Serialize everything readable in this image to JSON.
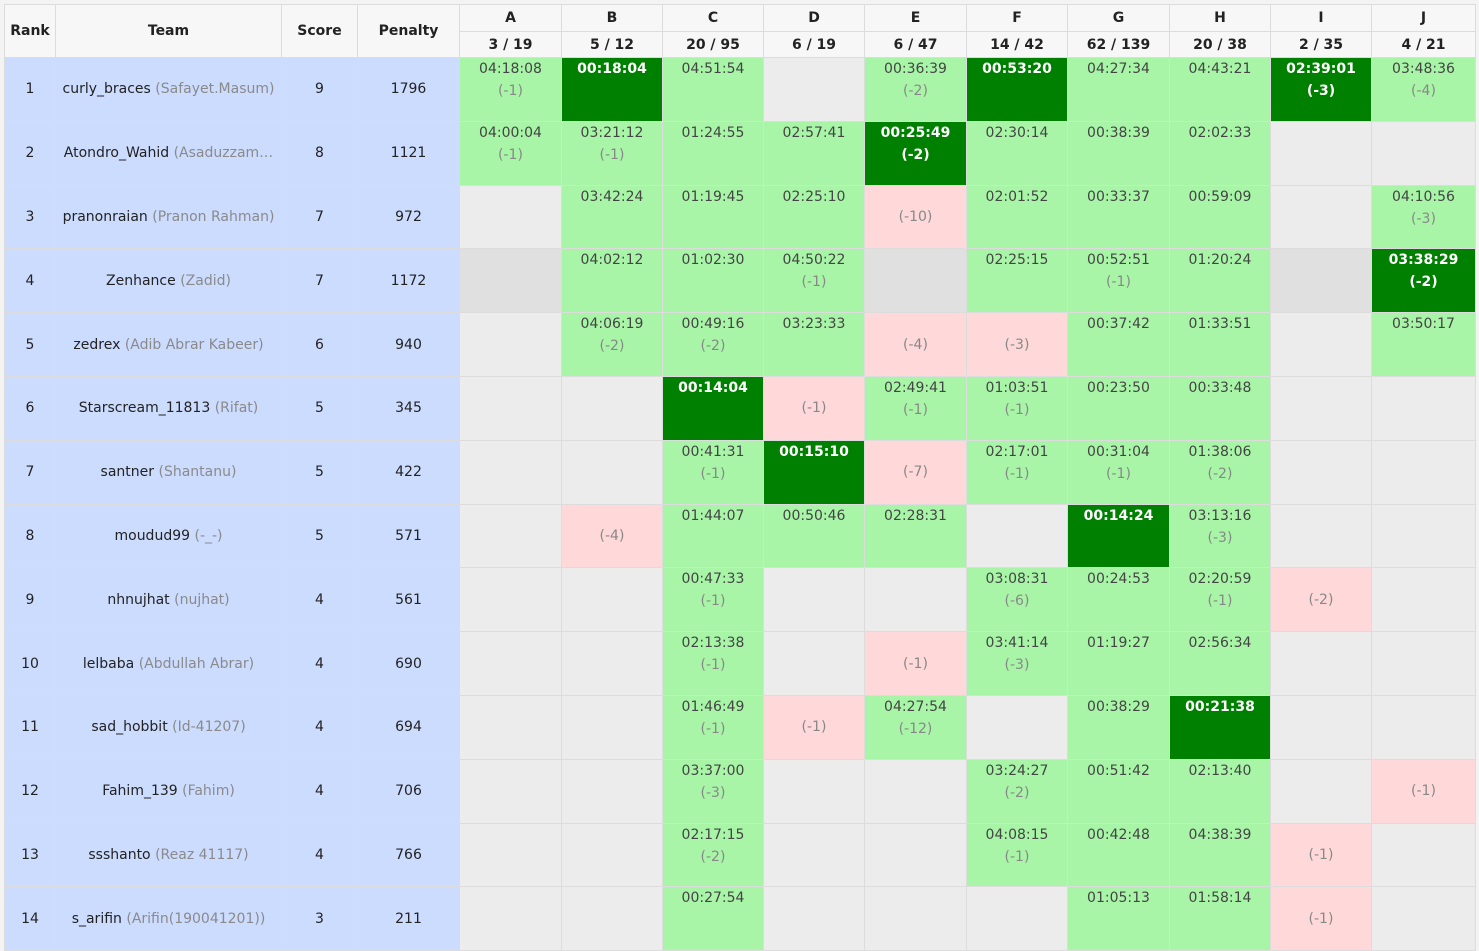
{
  "headers": {
    "rank": "Rank",
    "team": "Team",
    "score": "Score",
    "penalty": "Penalty"
  },
  "problems": [
    {
      "letter": "A",
      "stats": "3 / 19"
    },
    {
      "letter": "B",
      "stats": "5 / 12"
    },
    {
      "letter": "C",
      "stats": "20 / 95"
    },
    {
      "letter": "D",
      "stats": "6 / 19"
    },
    {
      "letter": "E",
      "stats": "6 / 47"
    },
    {
      "letter": "F",
      "stats": "14 / 42"
    },
    {
      "letter": "G",
      "stats": "62 / 139"
    },
    {
      "letter": "H",
      "stats": "20 / 38"
    },
    {
      "letter": "I",
      "stats": "2 / 35"
    },
    {
      "letter": "J",
      "stats": "4 / 21"
    }
  ],
  "colors": {
    "solved": "#a8f5a8",
    "first_solve": "#008000",
    "failed": "#ffd9d9",
    "empty": "#ececec",
    "team_bg": "#ccdcff"
  },
  "rows": [
    {
      "rank": "1",
      "handle": "curly_braces",
      "name": "(Safayet.Masum)",
      "score": "9",
      "penalty": "1796",
      "cells": [
        {
          "s": "ok",
          "t": "04:18:08",
          "p": "(-1)"
        },
        {
          "s": "first",
          "t": "00:18:04",
          "p": ""
        },
        {
          "s": "ok",
          "t": "04:51:54",
          "p": ""
        },
        {
          "s": "none"
        },
        {
          "s": "ok",
          "t": "00:36:39",
          "p": "(-2)"
        },
        {
          "s": "first",
          "t": "00:53:20",
          "p": ""
        },
        {
          "s": "ok",
          "t": "04:27:34",
          "p": ""
        },
        {
          "s": "ok",
          "t": "04:43:21",
          "p": ""
        },
        {
          "s": "first",
          "t": "02:39:01",
          "p": "(-3)"
        },
        {
          "s": "ok",
          "t": "03:48:36",
          "p": "(-4)"
        }
      ]
    },
    {
      "rank": "2",
      "handle": "Atondro_Wahid",
      "name": "(Asaduzzam…",
      "score": "8",
      "penalty": "1121",
      "cells": [
        {
          "s": "ok",
          "t": "04:00:04",
          "p": "(-1)"
        },
        {
          "s": "ok",
          "t": "03:21:12",
          "p": "(-1)"
        },
        {
          "s": "ok",
          "t": "01:24:55",
          "p": ""
        },
        {
          "s": "ok",
          "t": "02:57:41",
          "p": ""
        },
        {
          "s": "first",
          "t": "00:25:49",
          "p": "(-2)"
        },
        {
          "s": "ok",
          "t": "02:30:14",
          "p": ""
        },
        {
          "s": "ok",
          "t": "00:38:39",
          "p": ""
        },
        {
          "s": "ok",
          "t": "02:02:33",
          "p": ""
        },
        {
          "s": "none"
        },
        {
          "s": "none"
        }
      ]
    },
    {
      "rank": "3",
      "handle": "pranonraian",
      "name": "(Pranon Rahman)",
      "score": "7",
      "penalty": "972",
      "cells": [
        {
          "s": "none"
        },
        {
          "s": "ok",
          "t": "03:42:24",
          "p": ""
        },
        {
          "s": "ok",
          "t": "01:19:45",
          "p": ""
        },
        {
          "s": "ok",
          "t": "02:25:10",
          "p": ""
        },
        {
          "s": "fail",
          "p": "(-10)"
        },
        {
          "s": "ok",
          "t": "02:01:52",
          "p": ""
        },
        {
          "s": "ok",
          "t": "00:33:37",
          "p": ""
        },
        {
          "s": "ok",
          "t": "00:59:09",
          "p": ""
        },
        {
          "s": "none"
        },
        {
          "s": "ok",
          "t": "04:10:56",
          "p": "(-3)"
        }
      ]
    },
    {
      "rank": "4",
      "handle": "Zenhance",
      "name": "(Zadid)",
      "score": "7",
      "penalty": "1172",
      "cells": [
        {
          "s": "grey"
        },
        {
          "s": "ok",
          "t": "04:02:12",
          "p": ""
        },
        {
          "s": "ok",
          "t": "01:02:30",
          "p": ""
        },
        {
          "s": "ok",
          "t": "04:50:22",
          "p": "(-1)"
        },
        {
          "s": "grey"
        },
        {
          "s": "ok",
          "t": "02:25:15",
          "p": ""
        },
        {
          "s": "ok",
          "t": "00:52:51",
          "p": "(-1)"
        },
        {
          "s": "ok",
          "t": "01:20:24",
          "p": ""
        },
        {
          "s": "grey"
        },
        {
          "s": "first",
          "t": "03:38:29",
          "p": "(-2)"
        }
      ]
    },
    {
      "rank": "5",
      "handle": "zedrex",
      "name": "(Adib Abrar Kabeer)",
      "score": "6",
      "penalty": "940",
      "cells": [
        {
          "s": "none"
        },
        {
          "s": "ok",
          "t": "04:06:19",
          "p": "(-2)"
        },
        {
          "s": "ok",
          "t": "00:49:16",
          "p": "(-2)"
        },
        {
          "s": "ok",
          "t": "03:23:33",
          "p": ""
        },
        {
          "s": "fail",
          "p": "(-4)"
        },
        {
          "s": "fail",
          "p": "(-3)"
        },
        {
          "s": "ok",
          "t": "00:37:42",
          "p": ""
        },
        {
          "s": "ok",
          "t": "01:33:51",
          "p": ""
        },
        {
          "s": "none"
        },
        {
          "s": "ok",
          "t": "03:50:17",
          "p": ""
        }
      ]
    },
    {
      "rank": "6",
      "handle": "Starscream_11813",
      "name": "(Rifat)",
      "score": "5",
      "penalty": "345",
      "cells": [
        {
          "s": "none"
        },
        {
          "s": "none"
        },
        {
          "s": "first",
          "t": "00:14:04",
          "p": ""
        },
        {
          "s": "fail",
          "p": "(-1)"
        },
        {
          "s": "ok",
          "t": "02:49:41",
          "p": "(-1)"
        },
        {
          "s": "ok",
          "t": "01:03:51",
          "p": "(-1)"
        },
        {
          "s": "ok",
          "t": "00:23:50",
          "p": ""
        },
        {
          "s": "ok",
          "t": "00:33:48",
          "p": ""
        },
        {
          "s": "none"
        },
        {
          "s": "none"
        }
      ]
    },
    {
      "rank": "7",
      "handle": "santner",
      "name": "(Shantanu)",
      "score": "5",
      "penalty": "422",
      "cells": [
        {
          "s": "none"
        },
        {
          "s": "none"
        },
        {
          "s": "ok",
          "t": "00:41:31",
          "p": "(-1)"
        },
        {
          "s": "first",
          "t": "00:15:10",
          "p": ""
        },
        {
          "s": "fail",
          "p": "(-7)"
        },
        {
          "s": "ok",
          "t": "02:17:01",
          "p": "(-1)"
        },
        {
          "s": "ok",
          "t": "00:31:04",
          "p": "(-1)"
        },
        {
          "s": "ok",
          "t": "01:38:06",
          "p": "(-2)"
        },
        {
          "s": "none"
        },
        {
          "s": "none"
        }
      ]
    },
    {
      "rank": "8",
      "handle": "moudud99",
      "name": "(-_-)",
      "score": "5",
      "penalty": "571",
      "cells": [
        {
          "s": "none"
        },
        {
          "s": "fail",
          "p": "(-4)"
        },
        {
          "s": "ok",
          "t": "01:44:07",
          "p": ""
        },
        {
          "s": "ok",
          "t": "00:50:46",
          "p": ""
        },
        {
          "s": "ok",
          "t": "02:28:31",
          "p": ""
        },
        {
          "s": "none"
        },
        {
          "s": "first",
          "t": "00:14:24",
          "p": ""
        },
        {
          "s": "ok",
          "t": "03:13:16",
          "p": "(-3)"
        },
        {
          "s": "none"
        },
        {
          "s": "none"
        }
      ]
    },
    {
      "rank": "9",
      "handle": "nhnujhat",
      "name": "(nujhat)",
      "score": "4",
      "penalty": "561",
      "cells": [
        {
          "s": "none"
        },
        {
          "s": "none"
        },
        {
          "s": "ok",
          "t": "00:47:33",
          "p": "(-1)"
        },
        {
          "s": "none"
        },
        {
          "s": "none"
        },
        {
          "s": "ok",
          "t": "03:08:31",
          "p": "(-6)"
        },
        {
          "s": "ok",
          "t": "00:24:53",
          "p": ""
        },
        {
          "s": "ok",
          "t": "02:20:59",
          "p": "(-1)"
        },
        {
          "s": "fail",
          "p": "(-2)"
        },
        {
          "s": "none"
        }
      ]
    },
    {
      "rank": "10",
      "handle": "lelbaba",
      "name": "(Abdullah Abrar)",
      "score": "4",
      "penalty": "690",
      "cells": [
        {
          "s": "none"
        },
        {
          "s": "none"
        },
        {
          "s": "ok",
          "t": "02:13:38",
          "p": "(-1)"
        },
        {
          "s": "none"
        },
        {
          "s": "fail",
          "p": "(-1)"
        },
        {
          "s": "ok",
          "t": "03:41:14",
          "p": "(-3)"
        },
        {
          "s": "ok",
          "t": "01:19:27",
          "p": ""
        },
        {
          "s": "ok",
          "t": "02:56:34",
          "p": ""
        },
        {
          "s": "none"
        },
        {
          "s": "none"
        }
      ]
    },
    {
      "rank": "11",
      "handle": "sad_hobbit",
      "name": "(Id-41207)",
      "score": "4",
      "penalty": "694",
      "cells": [
        {
          "s": "none"
        },
        {
          "s": "none"
        },
        {
          "s": "ok",
          "t": "01:46:49",
          "p": "(-1)"
        },
        {
          "s": "fail",
          "p": "(-1)"
        },
        {
          "s": "ok",
          "t": "04:27:54",
          "p": "(-12)"
        },
        {
          "s": "none"
        },
        {
          "s": "ok",
          "t": "00:38:29",
          "p": ""
        },
        {
          "s": "first",
          "t": "00:21:38",
          "p": ""
        },
        {
          "s": "none"
        },
        {
          "s": "none"
        }
      ]
    },
    {
      "rank": "12",
      "handle": "Fahim_139",
      "name": "(Fahim)",
      "score": "4",
      "penalty": "706",
      "cells": [
        {
          "s": "none"
        },
        {
          "s": "none"
        },
        {
          "s": "ok",
          "t": "03:37:00",
          "p": "(-3)"
        },
        {
          "s": "none"
        },
        {
          "s": "none"
        },
        {
          "s": "ok",
          "t": "03:24:27",
          "p": "(-2)"
        },
        {
          "s": "ok",
          "t": "00:51:42",
          "p": ""
        },
        {
          "s": "ok",
          "t": "02:13:40",
          "p": ""
        },
        {
          "s": "none"
        },
        {
          "s": "fail",
          "p": "(-1)"
        }
      ]
    },
    {
      "rank": "13",
      "handle": "ssshanto",
      "name": "(Reaz 41117)",
      "score": "4",
      "penalty": "766",
      "cells": [
        {
          "s": "none"
        },
        {
          "s": "none"
        },
        {
          "s": "ok",
          "t": "02:17:15",
          "p": "(-2)"
        },
        {
          "s": "none"
        },
        {
          "s": "none"
        },
        {
          "s": "ok",
          "t": "04:08:15",
          "p": "(-1)"
        },
        {
          "s": "ok",
          "t": "00:42:48",
          "p": ""
        },
        {
          "s": "ok",
          "t": "04:38:39",
          "p": ""
        },
        {
          "s": "fail",
          "p": "(-1)"
        },
        {
          "s": "none"
        }
      ]
    },
    {
      "rank": "14",
      "handle": "s_arifin",
      "name": "(Arifin(190041201))",
      "score": "3",
      "penalty": "211",
      "cells": [
        {
          "s": "none"
        },
        {
          "s": "none"
        },
        {
          "s": "ok",
          "t": "00:27:54",
          "p": ""
        },
        {
          "s": "none"
        },
        {
          "s": "none"
        },
        {
          "s": "none"
        },
        {
          "s": "ok",
          "t": "01:05:13",
          "p": ""
        },
        {
          "s": "ok",
          "t": "01:58:14",
          "p": ""
        },
        {
          "s": "fail",
          "p": "(-1)"
        },
        {
          "s": "none"
        }
      ]
    }
  ]
}
